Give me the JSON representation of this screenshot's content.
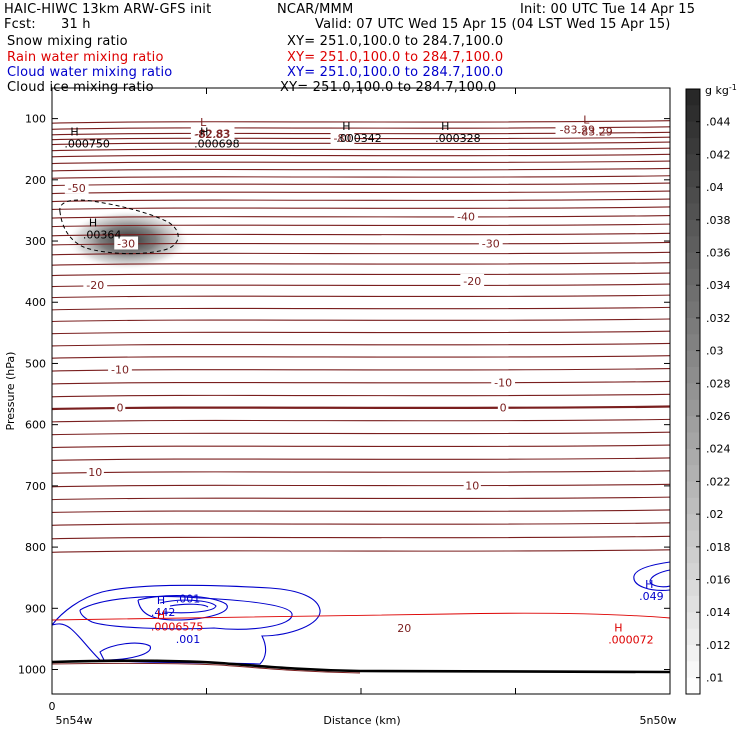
{
  "header": {
    "model": "HAIC-HIWC 13km ARW-GFS init",
    "org": "NCAR/MMM",
    "init": "Init: 00 UTC Tue 14 Apr 15",
    "fcst_label": "Fcst:",
    "fcst_value": "31 h",
    "valid": "Valid: 07 UTC Wed 15 Apr 15 (04 LST Wed 15 Apr 15)",
    "fields": [
      {
        "name": "Snow mixing ratio",
        "xy": "XY= 251.0,100.0 to 284.7,100.0",
        "color": "#000000"
      },
      {
        "name": "Rain water mixing ratio",
        "xy": "XY= 251.0,100.0 to 284.7,100.0",
        "color": "#dd0000"
      },
      {
        "name": "Cloud water mixing ratio",
        "xy": "XY= 251.0,100.0 to 284.7,100.0",
        "color": "#0000cc"
      },
      {
        "name": "Cloud ice mixing ratio",
        "xy": "XY= 251.0,100.0 to 284.7,100.0",
        "color": "#000000"
      }
    ]
  },
  "colors": {
    "temperature": "#7a1f1f",
    "cloud_water": "#0000cc",
    "rain": "#dd0000",
    "snow": "#000000"
  },
  "chart_data": {
    "type": "contour",
    "xlabel": "Distance (km)",
    "ylabel": "Pressure (hPa)",
    "x_start_label": "0",
    "x_end_labels": [
      "5n54w",
      "5n50w"
    ],
    "yticks": [
      100,
      200,
      300,
      400,
      500,
      600,
      700,
      800,
      900,
      1000
    ],
    "ylim": [
      50,
      1040
    ],
    "x_ticks_frac": [
      0,
      0.25,
      0.5,
      0.75,
      1
    ],
    "temperature_contour_pressures": [
      105,
      115,
      124,
      132,
      140,
      150,
      160,
      171,
      183,
      195,
      207,
      220,
      233,
      246,
      260,
      274,
      289,
      304,
      320,
      337,
      354,
      372,
      390,
      410,
      429,
      449,
      469,
      489,
      510,
      531,
      552,
      572,
      593,
      614,
      635,
      656,
      677,
      699,
      720,
      741,
      762,
      784,
      806
    ],
    "temperature_labels": [
      {
        "text": "-82.83",
        "x": 0.26,
        "p": 124
      },
      {
        "text": "-83.29",
        "x": 0.85,
        "p": 118
      },
      {
        "text": "-80",
        "x": 0.47,
        "p": 132
      },
      {
        "text": "-50",
        "x": 0.04,
        "p": 213
      },
      {
        "text": "-40",
        "x": 0.67,
        "p": 260
      },
      {
        "text": "-30",
        "x": 0.12,
        "p": 304
      },
      {
        "text": "-30",
        "x": 0.71,
        "p": 304
      },
      {
        "text": "-20",
        "x": 0.07,
        "p": 372
      },
      {
        "text": "-20",
        "x": 0.68,
        "p": 365
      },
      {
        "text": "-10",
        "x": 0.11,
        "p": 510
      },
      {
        "text": "-10",
        "x": 0.73,
        "p": 531
      },
      {
        "text": "0",
        "x": 0.11,
        "p": 572
      },
      {
        "text": "0",
        "x": 0.73,
        "p": 572
      },
      {
        "text": "10",
        "x": 0.07,
        "p": 677
      },
      {
        "text": "10",
        "x": 0.68,
        "p": 699
      },
      {
        "text": "20",
        "x": 0.57,
        "p": 932
      }
    ],
    "extrema": [
      {
        "mark": "L",
        "value": "-82.83",
        "x": 0.23,
        "p": 112,
        "color": "#7a1f1f"
      },
      {
        "mark": "L",
        "value": "-83.29",
        "x": 0.85,
        "p": 108,
        "color": "#7a1f1f"
      },
      {
        "mark": "H",
        "value": ".000750",
        "x": 0.02,
        "p": 128,
        "color": "#000000"
      },
      {
        "mark": "H",
        "value": ".000698",
        "x": 0.23,
        "p": 128,
        "color": "#000000"
      },
      {
        "mark": "H",
        "value": ".000342",
        "x": 0.46,
        "p": 119,
        "color": "#000000"
      },
      {
        "mark": "H",
        "value": ".000328",
        "x": 0.62,
        "p": 119,
        "color": "#000000"
      },
      {
        "mark": "H",
        "value": ".00364",
        "x": 0.05,
        "p": 276,
        "color": "#000000"
      },
      {
        "mark": "H",
        "value": ".442",
        "x": 0.16,
        "p": 893,
        "color": "#0000cc"
      },
      {
        "mark": "H",
        "value": ".0006575",
        "x": 0.16,
        "p": 917,
        "color": "#dd0000"
      },
      {
        "mark": "H",
        "value": ".000072",
        "x": 0.9,
        "p": 938,
        "color": "#dd0000"
      },
      {
        "mark": "H",
        "value": ".049",
        "x": 0.95,
        "p": 867,
        "color": "#0000cc"
      }
    ],
    "cloud_water_labels": [
      {
        "text": ".001",
        "x": 0.22,
        "p": 884
      },
      {
        "text": ".001",
        "x": 0.22,
        "p": 950
      }
    ],
    "colorbar": {
      "unit": "g kg",
      "unit_exp": "-1",
      "labels": [
        ".044",
        ".042",
        ".04",
        ".038",
        ".036",
        ".034",
        ".032",
        ".03",
        ".028",
        ".026",
        ".024",
        ".022",
        ".02",
        ".018",
        ".016",
        ".014",
        ".012",
        ".01"
      ]
    }
  }
}
